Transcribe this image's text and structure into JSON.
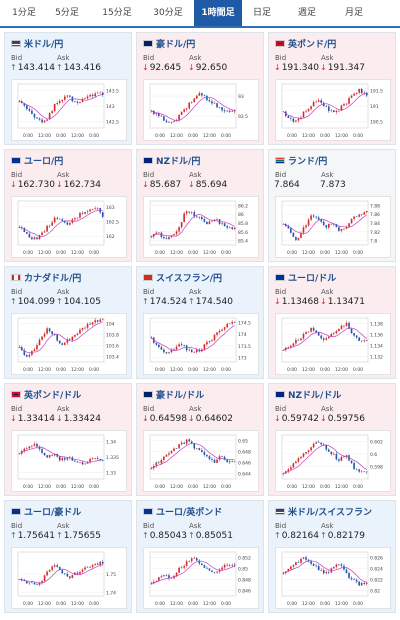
{
  "tabs": [
    {
      "label": "1分足",
      "active": false
    },
    {
      "label": "5分足",
      "active": false
    },
    {
      "label": "15分足",
      "active": false
    },
    {
      "label": "30分足",
      "active": false
    },
    {
      "label": "1時間足",
      "active": true
    },
    {
      "label": "日足",
      "active": false
    },
    {
      "label": "週足",
      "active": false
    },
    {
      "label": "月足",
      "active": false
    }
  ],
  "cards": [
    {
      "name": "米ドル/円",
      "trend": "up",
      "flag": "us",
      "bid": "143.414",
      "ask": "143.416",
      "bid_dir": "up",
      "ask_dir": "up"
    },
    {
      "name": "豪ドル/円",
      "trend": "down",
      "flag": "au",
      "bid": "92.645",
      "ask": "92.650",
      "bid_dir": "down",
      "ask_dir": "down"
    },
    {
      "name": "英ポンド/円",
      "trend": "down",
      "flag": "gb",
      "bid": "191.340",
      "ask": "191.347",
      "bid_dir": "down",
      "ask_dir": "down"
    },
    {
      "name": "ユーロ/円",
      "trend": "down",
      "flag": "eu",
      "bid": "162.730",
      "ask": "162.734",
      "bid_dir": "down",
      "ask_dir": "down"
    },
    {
      "name": "NZドル/円",
      "trend": "down",
      "flag": "nz",
      "bid": "85.687",
      "ask": "85.694",
      "bid_dir": "down",
      "ask_dir": "down"
    },
    {
      "name": "ランド/円",
      "trend": "neutral",
      "flag": "za",
      "bid": "7.864",
      "ask": "7.873",
      "bid_dir": "",
      "ask_dir": ""
    },
    {
      "name": "カナダドル/円",
      "trend": "up",
      "flag": "ca",
      "bid": "104.099",
      "ask": "104.105",
      "bid_dir": "up",
      "ask_dir": "up"
    },
    {
      "name": "スイスフラン/円",
      "trend": "up",
      "flag": "ch",
      "bid": "174.524",
      "ask": "174.540",
      "bid_dir": "up",
      "ask_dir": "up"
    },
    {
      "name": "ユーロ/ドル",
      "trend": "down",
      "flag": "eu",
      "bid": "1.13468",
      "ask": "1.13471",
      "bid_dir": "down",
      "ask_dir": "down"
    },
    {
      "name": "英ポンド/ドル",
      "trend": "down",
      "flag": "gb",
      "bid": "1.33414",
      "ask": "1.33424",
      "bid_dir": "down",
      "ask_dir": "down"
    },
    {
      "name": "豪ドル/ドル",
      "trend": "down",
      "flag": "au",
      "bid": "0.64598",
      "ask": "0.64602",
      "bid_dir": "down",
      "ask_dir": "down"
    },
    {
      "name": "NZドル/ドル",
      "trend": "down",
      "flag": "nz",
      "bid": "0.59742",
      "ask": "0.59756",
      "bid_dir": "down",
      "ask_dir": "down"
    },
    {
      "name": "ユーロ/豪ドル",
      "trend": "up",
      "flag": "eu",
      "bid": "1.75641",
      "ask": "1.75655",
      "bid_dir": "up",
      "ask_dir": "up"
    },
    {
      "name": "ユーロ/英ポンド",
      "trend": "up",
      "flag": "eu",
      "bid": "0.85043",
      "ask": "0.85051",
      "bid_dir": "up",
      "ask_dir": "up"
    },
    {
      "name": "米ドル/スイスフラン",
      "trend": "up",
      "flag": "us",
      "bid": "0.82164",
      "ask": "0.82179",
      "bid_dir": "up",
      "ask_dir": "up"
    }
  ],
  "labels": {
    "bid": "Bid",
    "ask": "Ask"
  },
  "chart_data": [
    {
      "type": "line",
      "x_ticks": [
        "0:00",
        "12:00",
        "0:00",
        "12:00",
        "0:00"
      ],
      "y_ticks": [
        "143.5",
        "143",
        "142.5"
      ],
      "ylim": [
        142.3,
        143.7
      ],
      "values": [
        143.2,
        142.9,
        142.7,
        142.5,
        142.6,
        143.0,
        143.2,
        143.3,
        143.1,
        143.2,
        143.3,
        143.4,
        143.4
      ]
    },
    {
      "type": "line",
      "x_ticks": [
        "0:00",
        "12:00",
        "0:00",
        "12:00",
        "0:00"
      ],
      "y_ticks": [
        "93",
        "92.5"
      ],
      "ylim": [
        92.2,
        93.3
      ],
      "values": [
        92.6,
        92.5,
        92.4,
        92.3,
        92.5,
        92.7,
        92.9,
        93.1,
        92.9,
        92.8,
        92.7,
        92.6,
        92.65
      ]
    },
    {
      "type": "line",
      "x_ticks": [
        "0:00",
        "12:00",
        "0:00",
        "12:00",
        "0:00"
      ],
      "y_ticks": [
        "191.5",
        "191",
        "190.5"
      ],
      "ylim": [
        190.3,
        191.7
      ],
      "values": [
        190.8,
        190.6,
        190.5,
        190.8,
        191.0,
        191.2,
        191.0,
        190.8,
        190.9,
        191.1,
        191.4,
        191.5,
        191.3
      ]
    },
    {
      "type": "line",
      "x_ticks": [
        "0:00",
        "12:00",
        "0:00",
        "12:00",
        "0:00"
      ],
      "y_ticks": [
        "163",
        "162.5",
        "162"
      ],
      "ylim": [
        161.7,
        163.2
      ],
      "values": [
        162.3,
        162.1,
        161.9,
        162.0,
        162.3,
        162.6,
        162.5,
        162.4,
        162.6,
        162.8,
        162.9,
        163.0,
        162.7
      ]
    },
    {
      "type": "line",
      "x_ticks": [
        "0:00",
        "12:00",
        "0:00",
        "12:00",
        "0:00"
      ],
      "y_ticks": [
        "86.2",
        "86",
        "85.8",
        "85.6",
        "85.4"
      ],
      "ylim": [
        85.3,
        86.3
      ],
      "values": [
        85.5,
        85.6,
        85.4,
        85.5,
        85.7,
        86.1,
        86.0,
        85.9,
        85.8,
        85.9,
        85.8,
        85.7,
        85.69
      ]
    },
    {
      "type": "line",
      "x_ticks": [
        "0:00",
        "12:00",
        "0:00",
        "12:00",
        "0:00"
      ],
      "y_ticks": [
        "7.88",
        "7.86",
        "7.84",
        "7.82",
        "7.8"
      ],
      "ylim": [
        7.79,
        7.89
      ],
      "values": [
        7.84,
        7.82,
        7.8,
        7.83,
        7.86,
        7.85,
        7.83,
        7.84,
        7.82,
        7.83,
        7.85,
        7.86,
        7.864
      ]
    },
    {
      "type": "line",
      "x_ticks": [
        "0:00",
        "12:00",
        "0:00",
        "12:00",
        "0:00"
      ],
      "y_ticks": [
        "104",
        "103.8",
        "103.6",
        "103.4"
      ],
      "ylim": [
        103.3,
        104.1
      ],
      "values": [
        103.6,
        103.4,
        103.5,
        103.7,
        103.9,
        103.8,
        103.6,
        103.7,
        103.8,
        103.9,
        104.0,
        104.05,
        104.1
      ]
    },
    {
      "type": "line",
      "x_ticks": [
        "0:00",
        "12:00",
        "0:00",
        "12:00",
        "0:00"
      ],
      "y_ticks": [
        "174.5",
        "174",
        "173.5",
        "173"
      ],
      "ylim": [
        172.8,
        174.7
      ],
      "values": [
        173.8,
        173.5,
        173.2,
        173.3,
        173.6,
        173.4,
        173.2,
        173.3,
        173.6,
        173.9,
        174.2,
        174.4,
        174.5
      ]
    },
    {
      "type": "line",
      "x_ticks": [
        "0:00",
        "12:00",
        "0:00",
        "12:00",
        "0:00"
      ],
      "y_ticks": [
        "1.138",
        "1.136",
        "1.134",
        "1.132"
      ],
      "ylim": [
        1.131,
        1.139
      ],
      "values": [
        1.133,
        1.134,
        1.135,
        1.136,
        1.137,
        1.136,
        1.135,
        1.136,
        1.137,
        1.138,
        1.136,
        1.135,
        1.1347
      ]
    },
    {
      "type": "line",
      "x_ticks": [
        "0:00",
        "12:00",
        "0:00",
        "12:00",
        "0:00"
      ],
      "y_ticks": [
        "1.34",
        "1.335",
        "1.33"
      ],
      "ylim": [
        1.328,
        1.342
      ],
      "values": [
        1.336,
        1.338,
        1.339,
        1.337,
        1.335,
        1.336,
        1.334,
        1.335,
        1.334,
        1.333,
        1.334,
        1.335,
        1.334
      ]
    },
    {
      "type": "line",
      "x_ticks": [
        "0:00",
        "12:00",
        "0:00",
        "12:00",
        "0:00"
      ],
      "y_ticks": [
        "0.65",
        "0.648",
        "0.646",
        "0.644"
      ],
      "ylim": [
        0.643,
        0.651
      ],
      "values": [
        0.645,
        0.646,
        0.647,
        0.648,
        0.649,
        0.65,
        0.649,
        0.648,
        0.647,
        0.646,
        0.647,
        0.646,
        0.646
      ]
    },
    {
      "type": "line",
      "x_ticks": [
        "0:00",
        "12:00",
        "0:00",
        "12:00",
        "0:00"
      ],
      "y_ticks": [
        "0.602",
        "0.6",
        "0.598"
      ],
      "ylim": [
        0.596,
        0.603
      ],
      "values": [
        0.597,
        0.598,
        0.599,
        0.6,
        0.601,
        0.602,
        0.601,
        0.6,
        0.599,
        0.6,
        0.598,
        0.597,
        0.5974
      ]
    },
    {
      "type": "line",
      "x_ticks": [
        "0:00",
        "12:00",
        "0:00",
        "12:00",
        "0:00"
      ],
      "y_ticks": [
        "1.75",
        "1.74"
      ],
      "ylim": [
        1.738,
        1.762
      ],
      "values": [
        1.748,
        1.746,
        1.744,
        1.745,
        1.752,
        1.755,
        1.751,
        1.748,
        1.75,
        1.752,
        1.754,
        1.755,
        1.756
      ]
    },
    {
      "type": "line",
      "x_ticks": [
        "0:00",
        "12:00",
        "0:00",
        "12:00",
        "0:00"
      ],
      "y_ticks": [
        "0.852",
        "0.85",
        "0.848",
        "0.846"
      ],
      "ylim": [
        0.845,
        0.853
      ],
      "values": [
        0.847,
        0.848,
        0.849,
        0.848,
        0.85,
        0.851,
        0.852,
        0.851,
        0.85,
        0.849,
        0.85,
        0.851,
        0.8504
      ]
    },
    {
      "type": "line",
      "x_ticks": [
        "0:00",
        "12:00",
        "0:00",
        "12:00",
        "0:00"
      ],
      "y_ticks": [
        "0.826",
        "0.824",
        "0.822",
        "0.82"
      ],
      "ylim": [
        0.819,
        0.827
      ],
      "values": [
        0.823,
        0.824,
        0.825,
        0.826,
        0.825,
        0.824,
        0.823,
        0.824,
        0.825,
        0.823,
        0.822,
        0.821,
        0.8216
      ]
    }
  ],
  "colors": {
    "tab_active": "#1f5aa6",
    "up_bg": "#eaf2fb",
    "down_bg": "#fbecef",
    "up_arrow": "#1d8f3a",
    "down_arrow": "#d12c2c",
    "candle_up": "#d12c2c",
    "candle_down": "#2255aa",
    "ma": "#c040c0",
    "title": "#1f4e8c"
  },
  "icons": {
    "up": "up-arrow-icon",
    "down": "down-arrow-icon"
  }
}
